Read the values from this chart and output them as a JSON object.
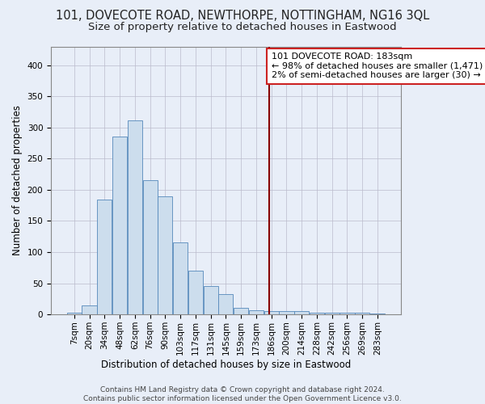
{
  "title": "101, DOVECOTE ROAD, NEWTHORPE, NOTTINGHAM, NG16 3QL",
  "subtitle": "Size of property relative to detached houses in Eastwood",
  "xlabel": "Distribution of detached houses by size in Eastwood",
  "ylabel": "Number of detached properties",
  "bar_color": "#ccdded",
  "bar_edge_color": "#5588bb",
  "background_color": "#e8eef8",
  "grid_color": "#bbbbcc",
  "bar_labels": [
    "7sqm",
    "20sqm",
    "34sqm",
    "48sqm",
    "62sqm",
    "76sqm",
    "90sqm",
    "103sqm",
    "117sqm",
    "131sqm",
    "145sqm",
    "159sqm",
    "173sqm",
    "186sqm",
    "200sqm",
    "214sqm",
    "228sqm",
    "242sqm",
    "256sqm",
    "269sqm",
    "283sqm"
  ],
  "bar_heights": [
    3,
    15,
    184,
    286,
    312,
    215,
    190,
    115,
    70,
    45,
    33,
    10,
    7,
    5,
    5,
    5,
    3,
    3,
    3,
    3,
    2
  ],
  "vline_color": "#880000",
  "annotation_text": "101 DOVECOTE ROAD: 183sqm\n← 98% of detached houses are smaller (1,471)\n2% of semi-detached houses are larger (30) →",
  "annotation_box_color": "#ffffff",
  "annotation_box_edge": "#cc2222",
  "ylim": [
    0,
    430
  ],
  "yticks": [
    0,
    50,
    100,
    150,
    200,
    250,
    300,
    350,
    400
  ],
  "footer": "Contains HM Land Registry data © Crown copyright and database right 2024.\nContains public sector information licensed under the Open Government Licence v3.0.",
  "title_fontsize": 10.5,
  "subtitle_fontsize": 9.5,
  "axis_label_fontsize": 8.5,
  "tick_fontsize": 7.5,
  "annotation_fontsize": 8,
  "footer_fontsize": 6.5
}
